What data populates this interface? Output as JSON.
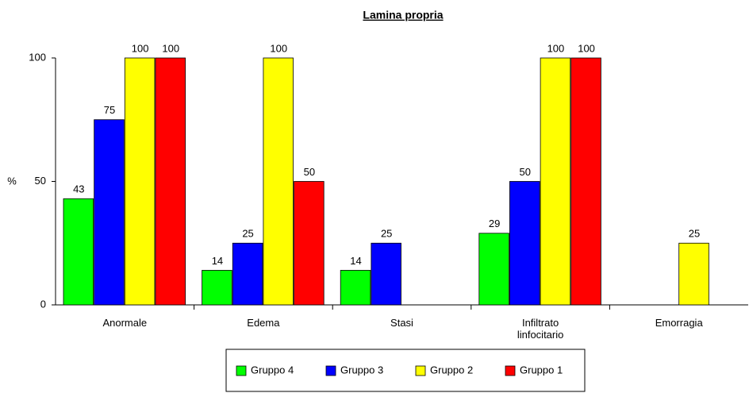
{
  "chart_data": {
    "type": "bar",
    "title": "Lamina propria",
    "y_label": "%",
    "categories": [
      "Anormale",
      "Edema",
      "Stasi",
      "Infiltrato linfocitario",
      "Emorragia"
    ],
    "series": [
      {
        "name": "Gruppo 4",
        "color": "#00ff00",
        "values": [
          43,
          14,
          14,
          29,
          null
        ]
      },
      {
        "name": "Gruppo 3",
        "color": "#0000ff",
        "values": [
          75,
          25,
          25,
          50,
          null
        ]
      },
      {
        "name": "Gruppo 2",
        "color": "#ffff00",
        "values": [
          100,
          100,
          null,
          100,
          25
        ]
      },
      {
        "name": "Gruppo 1",
        "color": "#ff0000",
        "values": [
          100,
          50,
          null,
          100,
          null
        ]
      }
    ],
    "ylim": [
      0,
      100
    ],
    "yticks": [
      0,
      50,
      100
    ],
    "grid": false,
    "legend": "bottom"
  }
}
